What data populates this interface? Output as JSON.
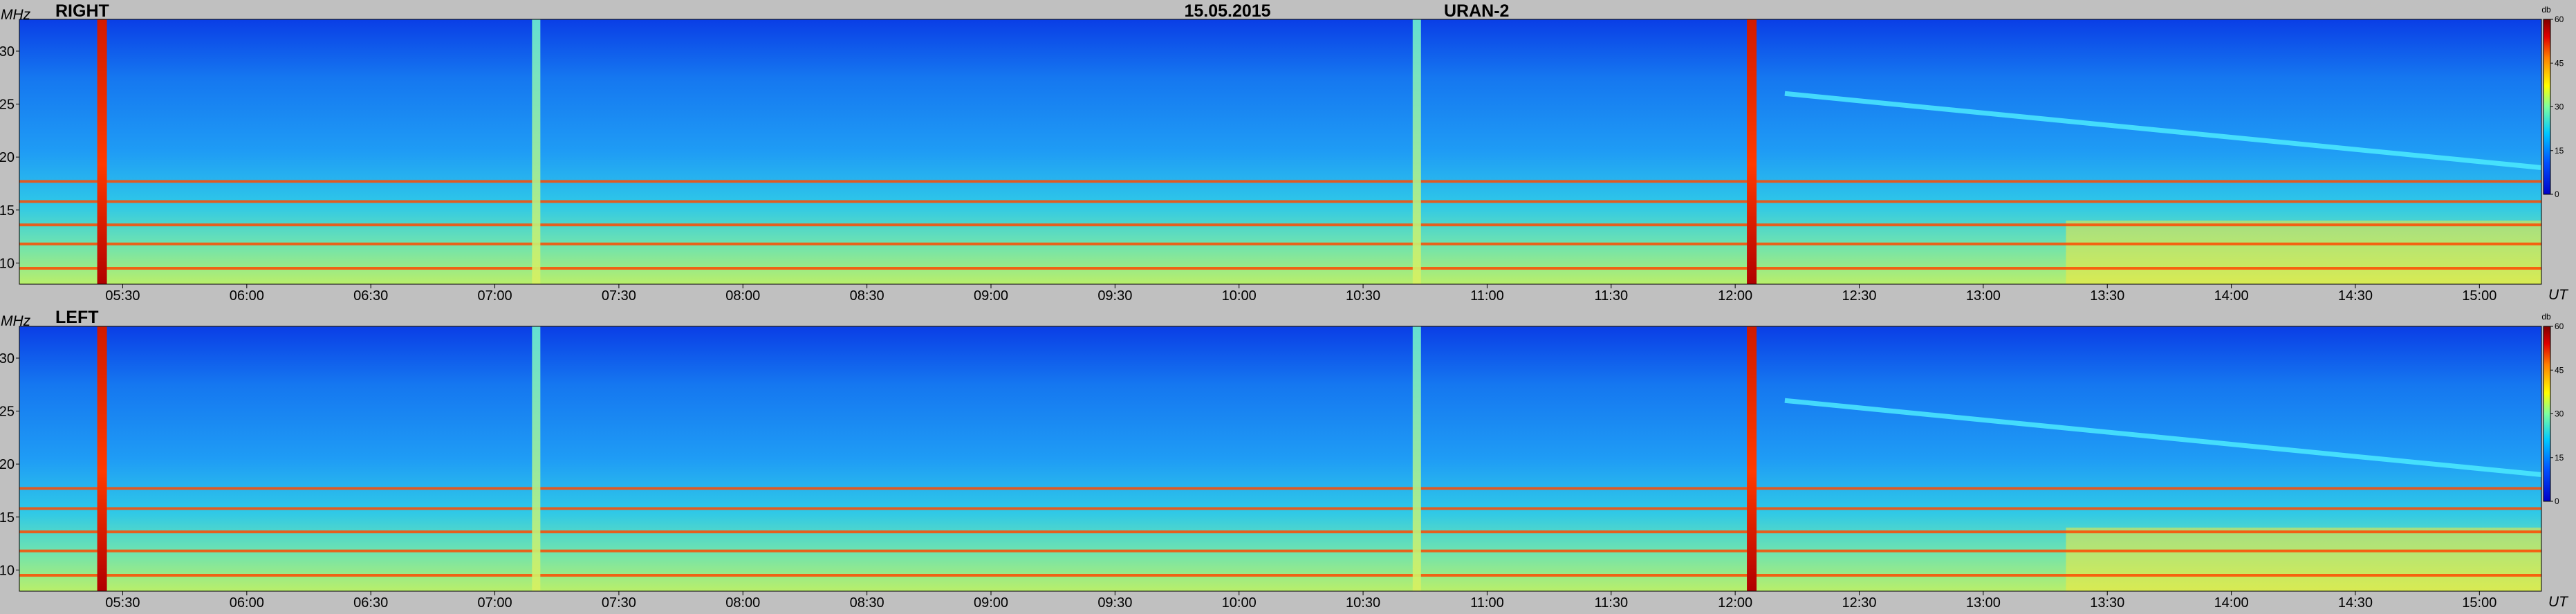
{
  "header": {
    "date": "15.05.2015",
    "instrument": "URAN-2"
  },
  "chart_data": [
    {
      "type": "heatmap",
      "title": "RIGHT",
      "x_unit": "UT",
      "y_unit": "MHz",
      "x_ticks": [
        "05:30",
        "06:00",
        "06:30",
        "07:00",
        "07:30",
        "08:00",
        "08:30",
        "09:00",
        "09:30",
        "10:00",
        "10:30",
        "11:00",
        "11:30",
        "12:00",
        "12:30",
        "13:00",
        "13:30",
        "14:00",
        "14:30",
        "15:00"
      ],
      "y_ticks": [
        "10",
        "15",
        "20",
        "25",
        "30"
      ],
      "xlim": [
        "05:05",
        "15:15"
      ],
      "ylim": [
        8,
        33
      ],
      "colorbar": {
        "unit": "db",
        "min": 0,
        "max": 60,
        "ticks": [
          "0",
          "15",
          "30",
          "45",
          "60"
        ]
      },
      "features": {
        "strong_bursts_time": [
          "05:25",
          "12:04"
        ],
        "medium_bursts_time": [
          "07:10",
          "10:43"
        ],
        "interference_bands_mhz": [
          9.5,
          11.8,
          13.6,
          15.8,
          17.7
        ],
        "drifting_stripe_start": {
          "time": "12:12",
          "freq_mhz": 26
        },
        "drifting_stripe_end": {
          "time": "15:15",
          "freq_mhz": 19
        }
      }
    },
    {
      "type": "heatmap",
      "title": "LEFT",
      "x_unit": "UT",
      "y_unit": "MHz",
      "x_ticks": [
        "05:30",
        "06:00",
        "06:30",
        "07:00",
        "07:30",
        "08:00",
        "08:30",
        "09:00",
        "09:30",
        "10:00",
        "10:30",
        "11:00",
        "11:30",
        "12:00",
        "12:30",
        "13:00",
        "13:30",
        "14:00",
        "14:30",
        "15:00"
      ],
      "y_ticks": [
        "10",
        "15",
        "20",
        "25",
        "30"
      ],
      "xlim": [
        "05:05",
        "15:15"
      ],
      "ylim": [
        8,
        33
      ],
      "colorbar": {
        "unit": "db",
        "min": 0,
        "max": 60,
        "ticks": [
          "0",
          "15",
          "30",
          "45",
          "60"
        ]
      },
      "features": {
        "strong_bursts_time": [
          "05:25",
          "12:04"
        ],
        "medium_bursts_time": [
          "07:10",
          "10:43"
        ],
        "interference_bands_mhz": [
          9.5,
          11.8,
          13.6,
          15.8,
          17.7
        ],
        "drifting_stripe_start": {
          "time": "12:12",
          "freq_mhz": 26
        },
        "drifting_stripe_end": {
          "time": "15:15",
          "freq_mhz": 19
        }
      }
    }
  ]
}
